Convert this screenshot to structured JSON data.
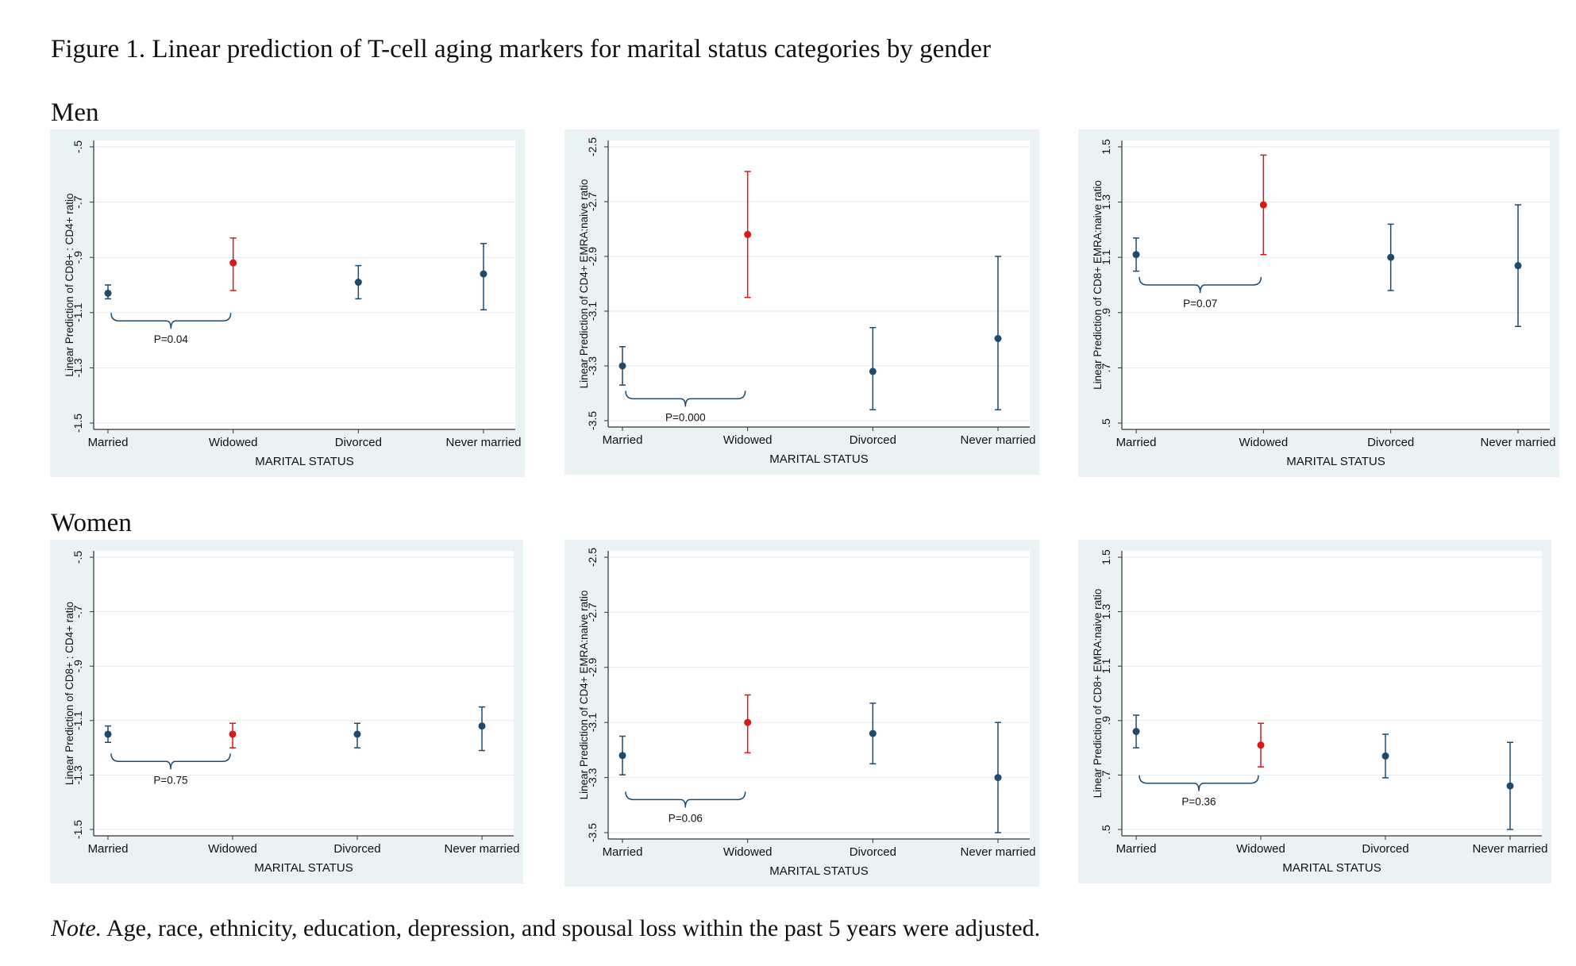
{
  "figure_title": "Figure 1. Linear prediction of T-cell aging markers for marital status categories by gender",
  "groups": {
    "men": "Men",
    "women": "Women"
  },
  "note": {
    "lead": "Note.",
    "text": " Age, race, ethnicity, education, depression, and spousal loss within the past 5 years were adjusted."
  },
  "colors": {
    "background": "#eaf2f3",
    "plot": "#ffffff",
    "default_point": "#1f4a6e",
    "widowed_point": "#d7191c",
    "grid": "#e3eaec",
    "bracket": "#1f4a6e"
  },
  "chart_data": [
    {
      "id": "men-cd8cd4",
      "type": "scatter",
      "group": "Men",
      "ylabel": "Linear Prediction of CD8+ : CD4+ ratio",
      "xlabel": "MARITAL STATUS",
      "categories": [
        "Married",
        "Widowed",
        "Divorced",
        "Never married"
      ],
      "ylim": [
        -1.5,
        -0.5
      ],
      "yticks": [
        -1.5,
        -1.3,
        -1.1,
        -0.9,
        -0.7,
        -0.5
      ],
      "ytick_labels": [
        "-1.5",
        "-1.3",
        "-1.1",
        "-.9",
        "-.7",
        "-.5"
      ],
      "values": [
        -1.03,
        -0.92,
        -0.99,
        -0.96
      ],
      "ci_low": [
        -1.05,
        -1.02,
        -1.05,
        -1.09
      ],
      "ci_high": [
        -1.0,
        -0.83,
        -0.93,
        -0.85
      ],
      "highlight": [
        false,
        true,
        false,
        false
      ],
      "annotation": {
        "text": "P=0.04",
        "from": "Married",
        "to": "Widowed",
        "y": -1.13
      }
    },
    {
      "id": "men-cd4emra",
      "type": "scatter",
      "group": "Men",
      "ylabel": "Linear Prediction of CD4+ EMRA:naive ratio",
      "xlabel": "MARITAL STATUS",
      "categories": [
        "Married",
        "Widowed",
        "Divorced",
        "Never married"
      ],
      "ylim": [
        -3.5,
        -2.5
      ],
      "yticks": [
        -3.5,
        -3.3,
        -3.1,
        -2.9,
        -2.7,
        -2.5
      ],
      "ytick_labels": [
        "-3.5",
        "-3.3",
        "-3.1",
        "-2.9",
        "-2.7",
        "-2.5"
      ],
      "values": [
        -3.3,
        -2.82,
        -3.32,
        -3.2
      ],
      "ci_low": [
        -3.37,
        -3.05,
        -3.46,
        -3.46
      ],
      "ci_high": [
        -3.23,
        -2.59,
        -3.16,
        -2.9
      ],
      "highlight": [
        false,
        true,
        false,
        false
      ],
      "annotation": {
        "text": "P=0.000",
        "from": "Married",
        "to": "Widowed",
        "y": -3.42
      }
    },
    {
      "id": "men-cd8emra",
      "type": "scatter",
      "group": "Men",
      "ylabel": "Linear Prediction of CD8+ EMRA:naive ratio",
      "xlabel": "MARITAL STATUS",
      "categories": [
        "Married",
        "Widowed",
        "Divorced",
        "Never married"
      ],
      "ylim": [
        0.5,
        1.5
      ],
      "yticks": [
        0.5,
        0.7,
        0.9,
        1.1,
        1.3,
        1.5
      ],
      "ytick_labels": [
        ".5",
        ".7",
        ".9",
        "1.1",
        "1.3",
        "1.5"
      ],
      "values": [
        1.11,
        1.29,
        1.1,
        1.07
      ],
      "ci_low": [
        1.05,
        1.11,
        0.98,
        0.85
      ],
      "ci_high": [
        1.17,
        1.47,
        1.22,
        1.29
      ],
      "highlight": [
        false,
        true,
        false,
        false
      ],
      "annotation": {
        "text": "P=0.07",
        "from": "Married",
        "to": "Widowed",
        "y": 1.0
      }
    },
    {
      "id": "women-cd8cd4",
      "type": "scatter",
      "group": "Women",
      "ylabel": "Linear Prediction of CD8+ : CD4+ ratio",
      "xlabel": "MARITAL STATUS",
      "categories": [
        "Married",
        "Widowed",
        "Divorced",
        "Never married"
      ],
      "ylim": [
        -1.5,
        -0.5
      ],
      "yticks": [
        -1.5,
        -1.3,
        -1.1,
        -0.9,
        -0.7,
        -0.5
      ],
      "ytick_labels": [
        "-1.5",
        "-1.3",
        "-1.1",
        "-.9",
        "-.7",
        "-.5"
      ],
      "values": [
        -1.15,
        -1.15,
        -1.15,
        -1.12
      ],
      "ci_low": [
        -1.18,
        -1.2,
        -1.2,
        -1.21
      ],
      "ci_high": [
        -1.12,
        -1.11,
        -1.11,
        -1.05
      ],
      "highlight": [
        false,
        true,
        false,
        false
      ],
      "annotation": {
        "text": "P=0.75",
        "from": "Married",
        "to": "Widowed",
        "y": -1.25
      }
    },
    {
      "id": "women-cd4emra",
      "type": "scatter",
      "group": "Women",
      "ylabel": "Linear Prediction of CD4+ EMRA:naive ratio",
      "xlabel": "MARITAL STATUS",
      "categories": [
        "Married",
        "Widowed",
        "Divorced",
        "Never married"
      ],
      "ylim": [
        -3.5,
        -2.5
      ],
      "yticks": [
        -3.5,
        -3.3,
        -3.1,
        -2.9,
        -2.7,
        -2.5
      ],
      "ytick_labels": [
        "-3.5",
        "-3.3",
        "-3.1",
        "-2.9",
        "-2.7",
        "-2.5"
      ],
      "values": [
        -3.22,
        -3.1,
        -3.14,
        -3.3
      ],
      "ci_low": [
        -3.29,
        -3.21,
        -3.25,
        -3.5
      ],
      "ci_high": [
        -3.15,
        -3.0,
        -3.03,
        -3.1
      ],
      "highlight": [
        false,
        true,
        false,
        false
      ],
      "annotation": {
        "text": "P=0.06",
        "from": "Married",
        "to": "Widowed",
        "y": -3.38
      }
    },
    {
      "id": "women-cd8emra",
      "type": "scatter",
      "group": "Women",
      "ylabel": "Linear Prediction of CD8+ EMRA:naive ratio",
      "xlabel": "MARITAL STATUS",
      "categories": [
        "Married",
        "Widowed",
        "Divorced",
        "Never married"
      ],
      "ylim": [
        0.5,
        1.5
      ],
      "yticks": [
        0.5,
        0.7,
        0.9,
        1.1,
        1.3,
        1.5
      ],
      "ytick_labels": [
        ".5",
        ".7",
        ".9",
        "1.1",
        "1.3",
        "1.5"
      ],
      "values": [
        0.86,
        0.81,
        0.77,
        0.66
      ],
      "ci_low": [
        0.8,
        0.73,
        0.69,
        0.5
      ],
      "ci_high": [
        0.92,
        0.89,
        0.85,
        0.82
      ],
      "highlight": [
        false,
        true,
        false,
        false
      ],
      "annotation": {
        "text": "P=0.36",
        "from": "Married",
        "to": "Widowed",
        "y": 0.67
      }
    }
  ]
}
